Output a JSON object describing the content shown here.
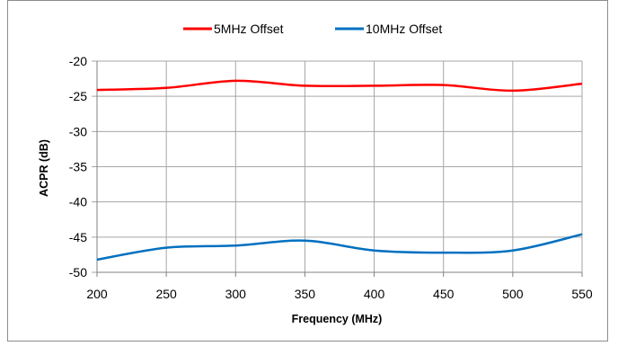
{
  "chart_data": {
    "type": "line",
    "title": "",
    "xlabel": "Frequency (MHz)",
    "ylabel": "ACPR (dB)",
    "xlim": [
      200,
      550
    ],
    "ylim": [
      -50,
      -20
    ],
    "x_ticks": [
      "200",
      "250",
      "300",
      "350",
      "400",
      "450",
      "500",
      "550"
    ],
    "y_ticks": [
      "-20",
      "-25",
      "-30",
      "-35",
      "-40",
      "-45",
      "-50"
    ],
    "grid": true,
    "legend_position": "top",
    "x": [
      200,
      250,
      300,
      350,
      400,
      450,
      500,
      550
    ],
    "series": [
      {
        "name": "5MHz Offset",
        "color": "#ff0000",
        "values": [
          -24.1,
          -23.8,
          -22.8,
          -23.5,
          -23.5,
          -23.4,
          -24.2,
          -23.2
        ]
      },
      {
        "name": "10MHz Offset",
        "color": "#0070c0",
        "values": [
          -48.2,
          -46.5,
          -46.2,
          -45.5,
          -46.9,
          -47.2,
          -46.9,
          -44.6
        ]
      }
    ]
  }
}
